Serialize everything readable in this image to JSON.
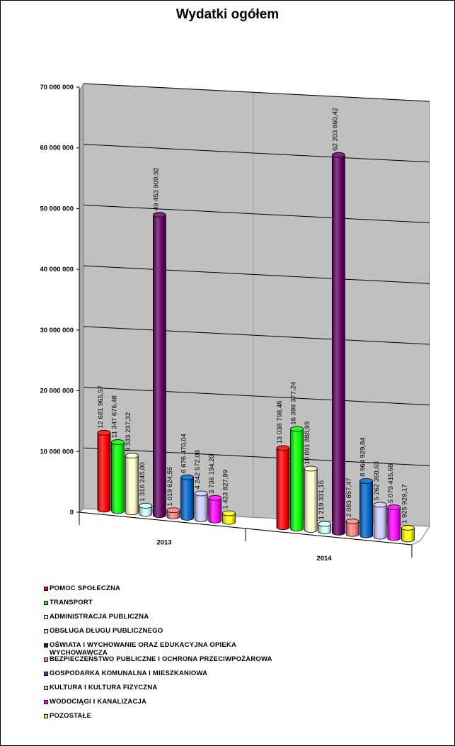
{
  "chart_data": {
    "type": "bar",
    "title": "Wydatki ogółem",
    "categories": [
      "2013",
      "2014"
    ],
    "ylim": [
      0,
      70000000
    ],
    "yticks": [
      "0",
      "10 000 000",
      "20 000 000",
      "30 000 000",
      "40 000 000",
      "50 000 000",
      "60 000 000",
      "70 000 000"
    ],
    "ytick_values": [
      0,
      10000000,
      20000000,
      30000000,
      40000000,
      50000000,
      60000000,
      70000000
    ],
    "series": [
      {
        "name": "POMOC SPOŁECZNA",
        "color": "#ff0000",
        "values": [
          12681965.57,
          13038798.48
        ],
        "labels": [
          "12 681 965,57",
          "13 038 798,48"
        ]
      },
      {
        "name": "TRANSPORT",
        "color": "#00ff00",
        "values": [
          11347676.48,
          16396377.24
        ],
        "labels": [
          "11 347 676,48",
          "16 396 377,24"
        ]
      },
      {
        "name": "ADMINISTRACJA PUBLICZNA",
        "color": "#ffffcc",
        "values": [
          9333237.32,
          10091888.93
        ],
        "labels": [
          "9 333 237,32",
          "10 091 888,93"
        ]
      },
      {
        "name": "OBSŁUGA DŁUGU PUBLICZNEGO",
        "color": "#ccffff",
        "values": [
          1316245.0,
          1219331.15
        ],
        "labels": [
          "1 316 245,00",
          "1 219 331,15"
        ]
      },
      {
        "name": "OŚWIATA I WYCHOWANIE ORAZ EDUKACYJNA OPIEKA WYCHOWAWCZA",
        "color": "#660066",
        "values": [
          49453909.92,
          62203860.42
        ],
        "labels": [
          "49 453 909,92",
          "62 203 860,42"
        ]
      },
      {
        "name": "BEZPIECZEŃSTWO PUBLICZNE I OCHRONA PRZECIWPOŻAROWA",
        "color": "#ff8080",
        "values": [
          1019624.55,
          2083657.47
        ],
        "labels": [
          "1 019 624,55",
          "2 083 657,47"
        ]
      },
      {
        "name": "GOSPODARKA KOMUNALNA I MIESZKANIOWA",
        "color": "#0066cc",
        "values": [
          6676470.04,
          8964929.84
        ],
        "labels": [
          "6 676 470,04",
          "8 964 929,84"
        ]
      },
      {
        "name": "KULTURA I KULTURA FIZYCZNA",
        "color": "#ccccff",
        "values": [
          4242572.08,
          5262360.63
        ],
        "labels": [
          "4 242 572,08",
          "5 262 360,63"
        ]
      },
      {
        "name": "WODOCIĄGI I KANALIZACJA",
        "color": "#ff00ff",
        "values": [
          3736194.2,
          5079415.68
        ],
        "labels": [
          "3 736 194,20",
          "5 079 415,68"
        ]
      },
      {
        "name": "POZOSTAŁE",
        "color": "#ffff00",
        "values": [
          1423827.99,
          1925929.17
        ],
        "labels": [
          "1 423 827,99",
          "1 925 929,17"
        ]
      }
    ]
  }
}
